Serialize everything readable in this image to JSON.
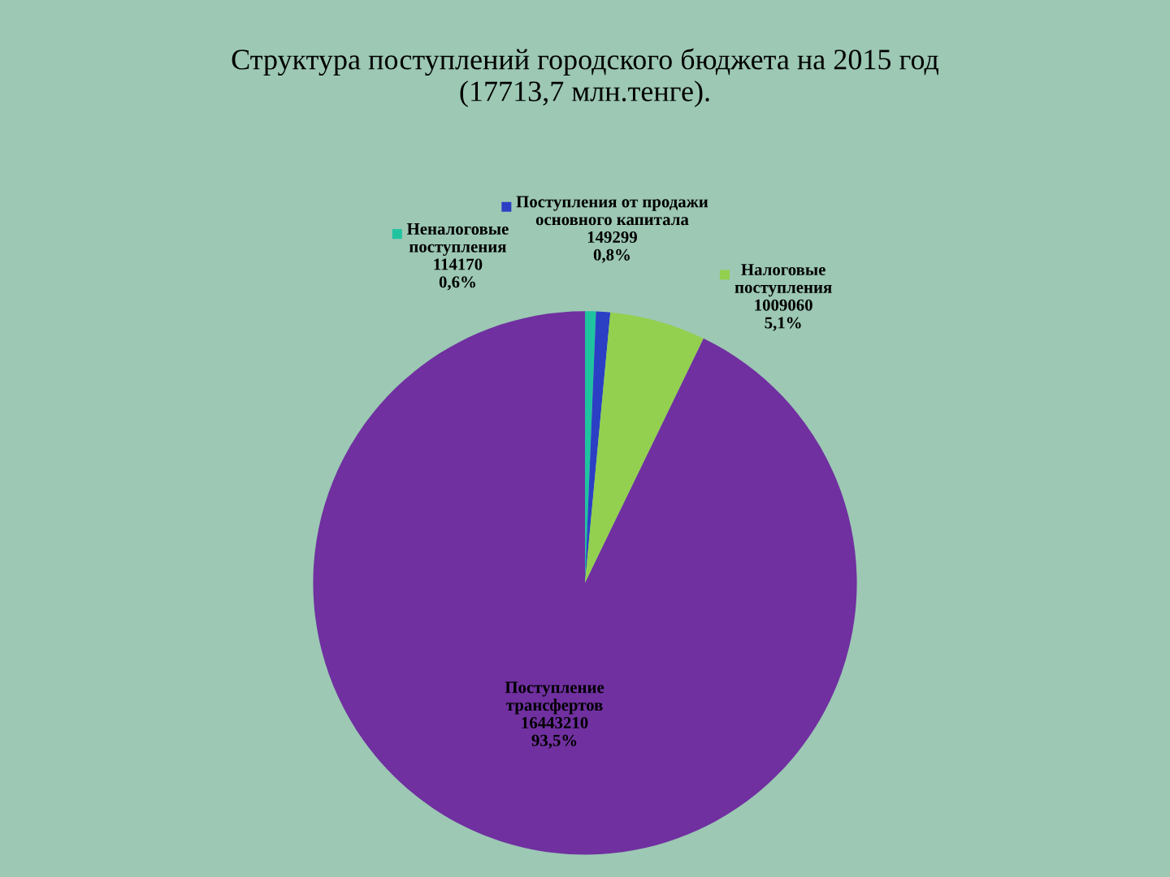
{
  "chart_data": {
    "type": "pie",
    "title": "Структура поступлений городского бюджета на 2015 год\n(17713,7 млн.тенге).",
    "categories": [
      "Неналоговые поступления",
      "Поступления от продажи основного капитала",
      "Налоговые поступления",
      "Поступление трансфертов"
    ],
    "values": [
      114170,
      149299,
      1009060,
      16443210
    ],
    "colors": [
      "#1fc3a0",
      "#2b3fc4",
      "#93d04f",
      "#7030a0"
    ],
    "data_labels": true,
    "annotations": [
      "0,6%",
      "0,8%",
      "5,1%",
      "93,5%"
    ],
    "legend": "top"
  }
}
